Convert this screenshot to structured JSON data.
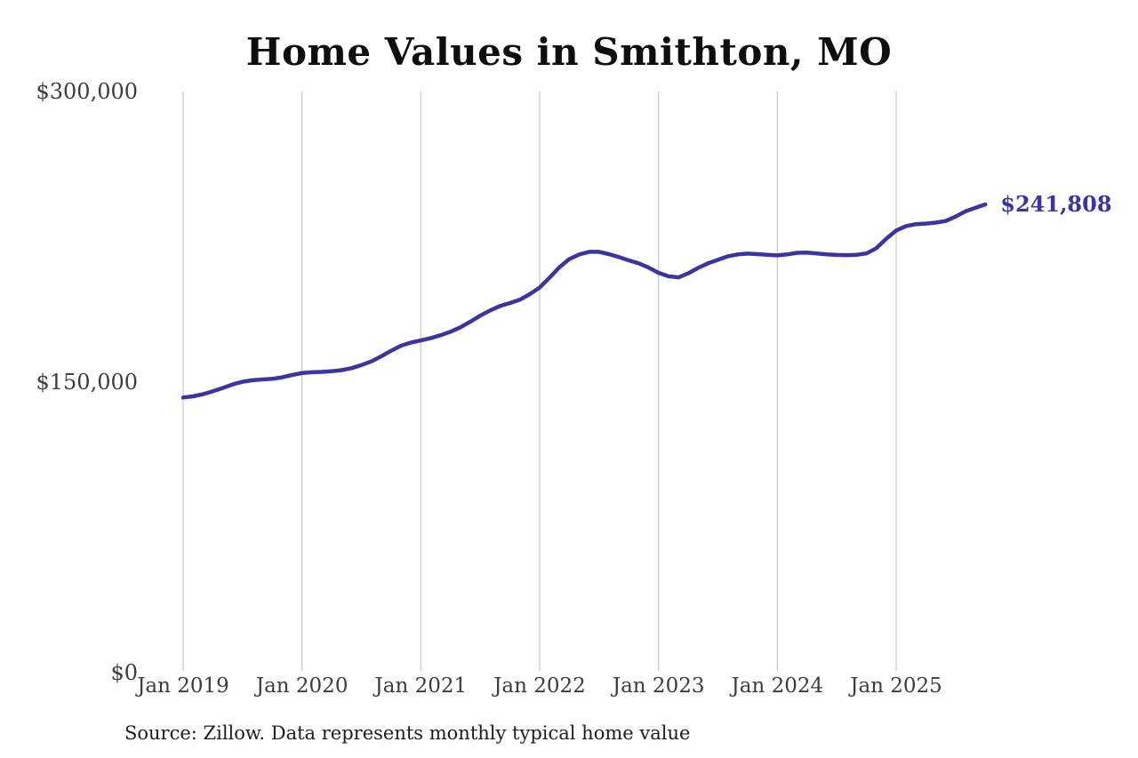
{
  "title": "Home Values in Smithton, MO",
  "source_note": "Source: Zillow. Data represents monthly typical home value",
  "end_label": "$241,808",
  "colors": {
    "background": "#ffffff",
    "line": "#3a35a2",
    "end_label": "#3a35a2",
    "gridline": "#cbcbcb",
    "title": "#0e0e0e",
    "axis_label": "#3c3c3c",
    "source": "#1c1c1c"
  },
  "chart_data": {
    "type": "line",
    "title": "Home Values in Smithton, MO",
    "xlabel": "",
    "ylabel": "",
    "ylim": [
      0,
      300000
    ],
    "y_tick_labels": [
      "$0",
      "$150,000",
      "$300,000"
    ],
    "x_tick_labels": [
      "Jan 2019",
      "Jan 2020",
      "Jan 2021",
      "Jan 2022",
      "Jan 2023",
      "Jan 2024",
      "Jan 2025"
    ],
    "x_start_month": "2019-01",
    "x_end_month": "2025-10",
    "grid": "vertical-yearly-only",
    "legend": "none",
    "last_point_annotation": "$241,808",
    "series": [
      {
        "name": "Monthly typical home value",
        "values": [
          142200,
          142800,
          143900,
          145400,
          147100,
          148900,
          150300,
          151100,
          151500,
          151800,
          152600,
          153800,
          154800,
          155200,
          155400,
          155700,
          156300,
          157300,
          158900,
          160800,
          163400,
          166300,
          168900,
          170500,
          171600,
          172800,
          174300,
          176100,
          178400,
          181300,
          184400,
          187100,
          189400,
          190900,
          192600,
          195500,
          198900,
          204000,
          209400,
          213600,
          216000,
          217300,
          217300,
          216100,
          214600,
          212900,
          211400,
          209200,
          206500,
          204700,
          204100,
          206200,
          209000,
          211400,
          213200,
          215000,
          216000,
          216400,
          216100,
          215800,
          215500,
          216000,
          216800,
          216900,
          216500,
          216000,
          215700,
          215600,
          215800,
          216500,
          219200,
          224100,
          228300,
          230600,
          231600,
          231900,
          232400,
          233200,
          235500,
          238200,
          240000,
          241808
        ]
      }
    ]
  }
}
